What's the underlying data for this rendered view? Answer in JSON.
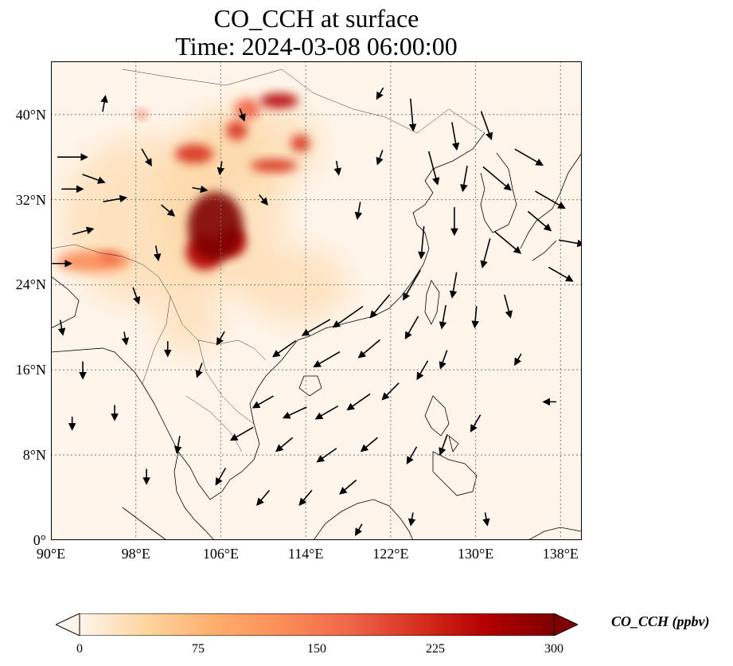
{
  "title": {
    "line1": "CO_CCH at surface",
    "line2": "Time: 2024-03-08 06:00:00"
  },
  "map": {
    "lon_range": [
      90,
      140
    ],
    "lat_range": [
      0,
      45
    ],
    "lat_ticks": [
      {
        "value": 0,
        "label": "0°"
      },
      {
        "value": 8,
        "label": "8°N"
      },
      {
        "value": 16,
        "label": "16°N"
      },
      {
        "value": 24,
        "label": "24°N"
      },
      {
        "value": 32,
        "label": "32°N"
      },
      {
        "value": 40,
        "label": "40°N"
      }
    ],
    "lon_ticks": [
      {
        "value": 90,
        "label": "90°E"
      },
      {
        "value": 98,
        "label": "98°E"
      },
      {
        "value": 106,
        "label": "106°E"
      },
      {
        "value": 114,
        "label": "114°E"
      },
      {
        "value": 122,
        "label": "122°E"
      },
      {
        "value": 130,
        "label": "130°E"
      },
      {
        "value": 138,
        "label": "138°E"
      }
    ],
    "gridlines": true
  },
  "colorbar": {
    "label": "CO_CCH (ppbv)",
    "min": 0,
    "max": 300,
    "extend": "both",
    "ticks": [
      {
        "value": 0,
        "label": "0"
      },
      {
        "value": 75,
        "label": "75"
      },
      {
        "value": 150,
        "label": "150"
      },
      {
        "value": 225,
        "label": "225"
      },
      {
        "value": 300,
        "label": "300"
      }
    ],
    "colormap": [
      "#fff5eb",
      "#fdd49e",
      "#fdae6b",
      "#fc8d59",
      "#ef6548",
      "#d7301f",
      "#b30000",
      "#7f0000"
    ]
  },
  "hotspots": [
    {
      "lon": 105.5,
      "lat": 29.5,
      "rx": 2.6,
      "ry": 3.2,
      "value": 300
    },
    {
      "lon": 104.5,
      "lat": 27.0,
      "rx": 1.8,
      "ry": 1.6,
      "value": 270
    },
    {
      "lon": 107.0,
      "lat": 28.0,
      "rx": 1.4,
      "ry": 1.4,
      "value": 240
    },
    {
      "lon": 103.5,
      "lat": 36.3,
      "rx": 1.8,
      "ry": 0.9,
      "value": 230
    },
    {
      "lon": 107.5,
      "lat": 38.5,
      "rx": 1.0,
      "ry": 0.9,
      "value": 210
    },
    {
      "lon": 111.0,
      "lat": 35.2,
      "rx": 2.2,
      "ry": 0.6,
      "value": 200
    },
    {
      "lon": 111.5,
      "lat": 41.3,
      "rx": 1.8,
      "ry": 0.7,
      "value": 260
    },
    {
      "lon": 113.5,
      "lat": 37.3,
      "rx": 0.9,
      "ry": 0.8,
      "value": 230
    },
    {
      "lon": 108.5,
      "lat": 40.5,
      "rx": 1.2,
      "ry": 1.0,
      "value": 150
    },
    {
      "lon": 94.0,
      "lat": 26.2,
      "rx": 3.5,
      "ry": 1.0,
      "value": 120
    },
    {
      "lon": 95.5,
      "lat": 26.6,
      "rx": 1.0,
      "ry": 0.5,
      "value": 180
    },
    {
      "lon": 98.5,
      "lat": 40.0,
      "rx": 0.5,
      "ry": 0.4,
      "value": 160
    },
    {
      "lon": 106.0,
      "lat": 31.0,
      "rx": 6.0,
      "ry": 8.0,
      "value": 60
    },
    {
      "lon": 109.0,
      "lat": 37.0,
      "rx": 6.5,
      "ry": 4.0,
      "value": 60
    },
    {
      "lon": 99.0,
      "lat": 30.0,
      "rx": 8.0,
      "ry": 8.0,
      "value": 25
    },
    {
      "lon": 113.0,
      "lat": 24.0,
      "rx": 5.0,
      "ry": 3.5,
      "value": 30
    },
    {
      "lon": 103.0,
      "lat": 20.5,
      "rx": 3.0,
      "ry": 3.0,
      "value": 35
    }
  ],
  "wind_vectors": [
    [
      92,
      36,
      2.8,
      0
    ],
    [
      94,
      34,
      2.2,
      -20
    ],
    [
      92,
      33,
      2.0,
      0
    ],
    [
      96,
      32,
      2.2,
      10
    ],
    [
      93,
      29,
      2.0,
      15
    ],
    [
      91,
      26,
      1.8,
      0
    ],
    [
      95,
      41,
      1.5,
      80
    ],
    [
      99,
      36,
      1.8,
      -60
    ],
    [
      101,
      31,
      1.6,
      -40
    ],
    [
      100,
      27,
      1.4,
      -80
    ],
    [
      98,
      23,
      1.6,
      -70
    ],
    [
      104,
      33,
      1.4,
      -10
    ],
    [
      106,
      35,
      1.2,
      -100
    ],
    [
      108,
      40,
      1.2,
      -70
    ],
    [
      110,
      32,
      1.2,
      -50
    ],
    [
      117,
      35,
      1.3,
      -80
    ],
    [
      119,
      31,
      1.6,
      -100
    ],
    [
      121,
      36,
      1.4,
      -110
    ],
    [
      121,
      42,
      1.2,
      -120
    ],
    [
      124,
      40,
      3.0,
      -85
    ],
    [
      126,
      35,
      3.2,
      -75
    ],
    [
      128,
      38,
      2.6,
      -80
    ],
    [
      129,
      34,
      2.4,
      -100
    ],
    [
      131,
      39,
      2.8,
      -70
    ],
    [
      132,
      34,
      3.4,
      -40
    ],
    [
      135,
      36,
      3.0,
      -30
    ],
    [
      137,
      32,
      3.2,
      -30
    ],
    [
      133,
      28,
      3.2,
      -40
    ],
    [
      136,
      30,
      2.8,
      -40
    ],
    [
      139,
      28,
      2.4,
      -10
    ],
    [
      138,
      25,
      2.6,
      -30
    ],
    [
      125,
      28,
      3.0,
      -95
    ],
    [
      128,
      30,
      2.6,
      -90
    ],
    [
      131,
      27,
      2.8,
      -105
    ],
    [
      128,
      24,
      2.4,
      -100
    ],
    [
      124,
      24,
      3.2,
      -120
    ],
    [
      121,
      22,
      2.8,
      -130
    ],
    [
      118,
      21,
      3.4,
      -145
    ],
    [
      115,
      20,
      3.0,
      -150
    ],
    [
      112,
      18,
      2.6,
      -145
    ],
    [
      116,
      17,
      2.8,
      -150
    ],
    [
      120,
      18,
      2.6,
      -140
    ],
    [
      124,
      20,
      2.4,
      -120
    ],
    [
      127,
      21,
      2.2,
      -100
    ],
    [
      130,
      21,
      2.0,
      -95
    ],
    [
      133,
      22,
      2.2,
      -75
    ],
    [
      127,
      17,
      1.8,
      -110
    ],
    [
      125,
      16,
      2.0,
      -120
    ],
    [
      122,
      14,
      2.2,
      -135
    ],
    [
      119,
      13,
      2.6,
      -145
    ],
    [
      116,
      12,
      2.4,
      -150
    ],
    [
      113,
      12,
      2.4,
      -155
    ],
    [
      110,
      13,
      2.2,
      -150
    ],
    [
      108,
      10,
      2.4,
      -150
    ],
    [
      112,
      9,
      2.0,
      -140
    ],
    [
      116,
      8,
      2.2,
      -145
    ],
    [
      120,
      9,
      2.0,
      -140
    ],
    [
      124,
      8,
      1.8,
      -120
    ],
    [
      127,
      9,
      2.0,
      -110
    ],
    [
      130,
      11,
      1.8,
      -120
    ],
    [
      118,
      5,
      2.0,
      -140
    ],
    [
      114,
      4,
      1.8,
      -130
    ],
    [
      110,
      4,
      1.8,
      -130
    ],
    [
      106,
      6,
      1.8,
      -120
    ],
    [
      102,
      9,
      1.6,
      -100
    ],
    [
      99,
      6,
      1.4,
      -90
    ],
    [
      96,
      12,
      1.4,
      -90
    ],
    [
      93,
      16,
      1.6,
      -90
    ],
    [
      91,
      20,
      1.4,
      -80
    ],
    [
      92,
      11,
      1.2,
      -90
    ],
    [
      104,
      16,
      1.4,
      -110
    ],
    [
      106,
      19,
      1.4,
      -120
    ],
    [
      101,
      18,
      1.4,
      -90
    ],
    [
      97,
      19,
      1.2,
      -80
    ],
    [
      131,
      2,
      1.2,
      -80
    ],
    [
      124,
      2,
      1.2,
      -100
    ],
    [
      119,
      1,
      1.2,
      -120
    ],
    [
      134,
      17,
      1.2,
      -120
    ],
    [
      137,
      13,
      1.2,
      -180
    ]
  ]
}
